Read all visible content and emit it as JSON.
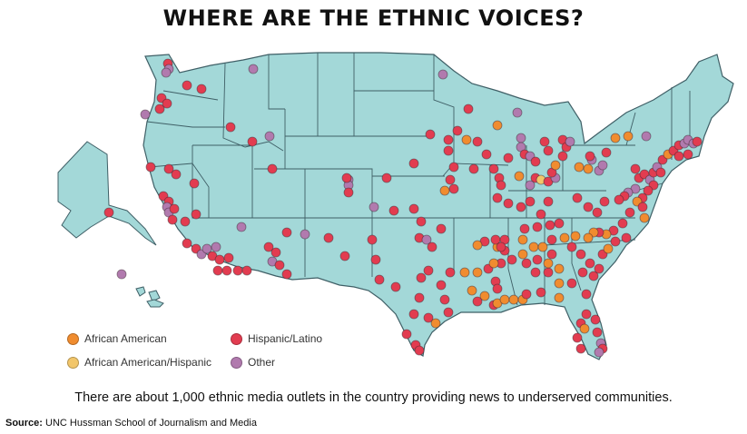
{
  "title": "WHERE ARE THE ETHNIC VOICES?",
  "caption": "There are about 1,000 ethnic media outlets in the country providing news to underserved communities.",
  "source": {
    "label": "Source:",
    "text": "UNC Hussman School of Journalism and Media"
  },
  "colors": {
    "land": "#a3d8d8",
    "border": "#3f5f66",
    "african_american": "#f08c2f",
    "african_american_hispanic": "#f2c66a",
    "hispanic_latino": "#e23c50",
    "other": "#b17aae"
  },
  "legend": [
    {
      "key": "african_american",
      "label": "African American"
    },
    {
      "key": "hispanic_latino",
      "label": "Hispanic/Latino"
    },
    {
      "key": "african_american_hispanic",
      "label": "African American/Hispanic"
    },
    {
      "key": "other",
      "label": "Other"
    }
  ]
}
